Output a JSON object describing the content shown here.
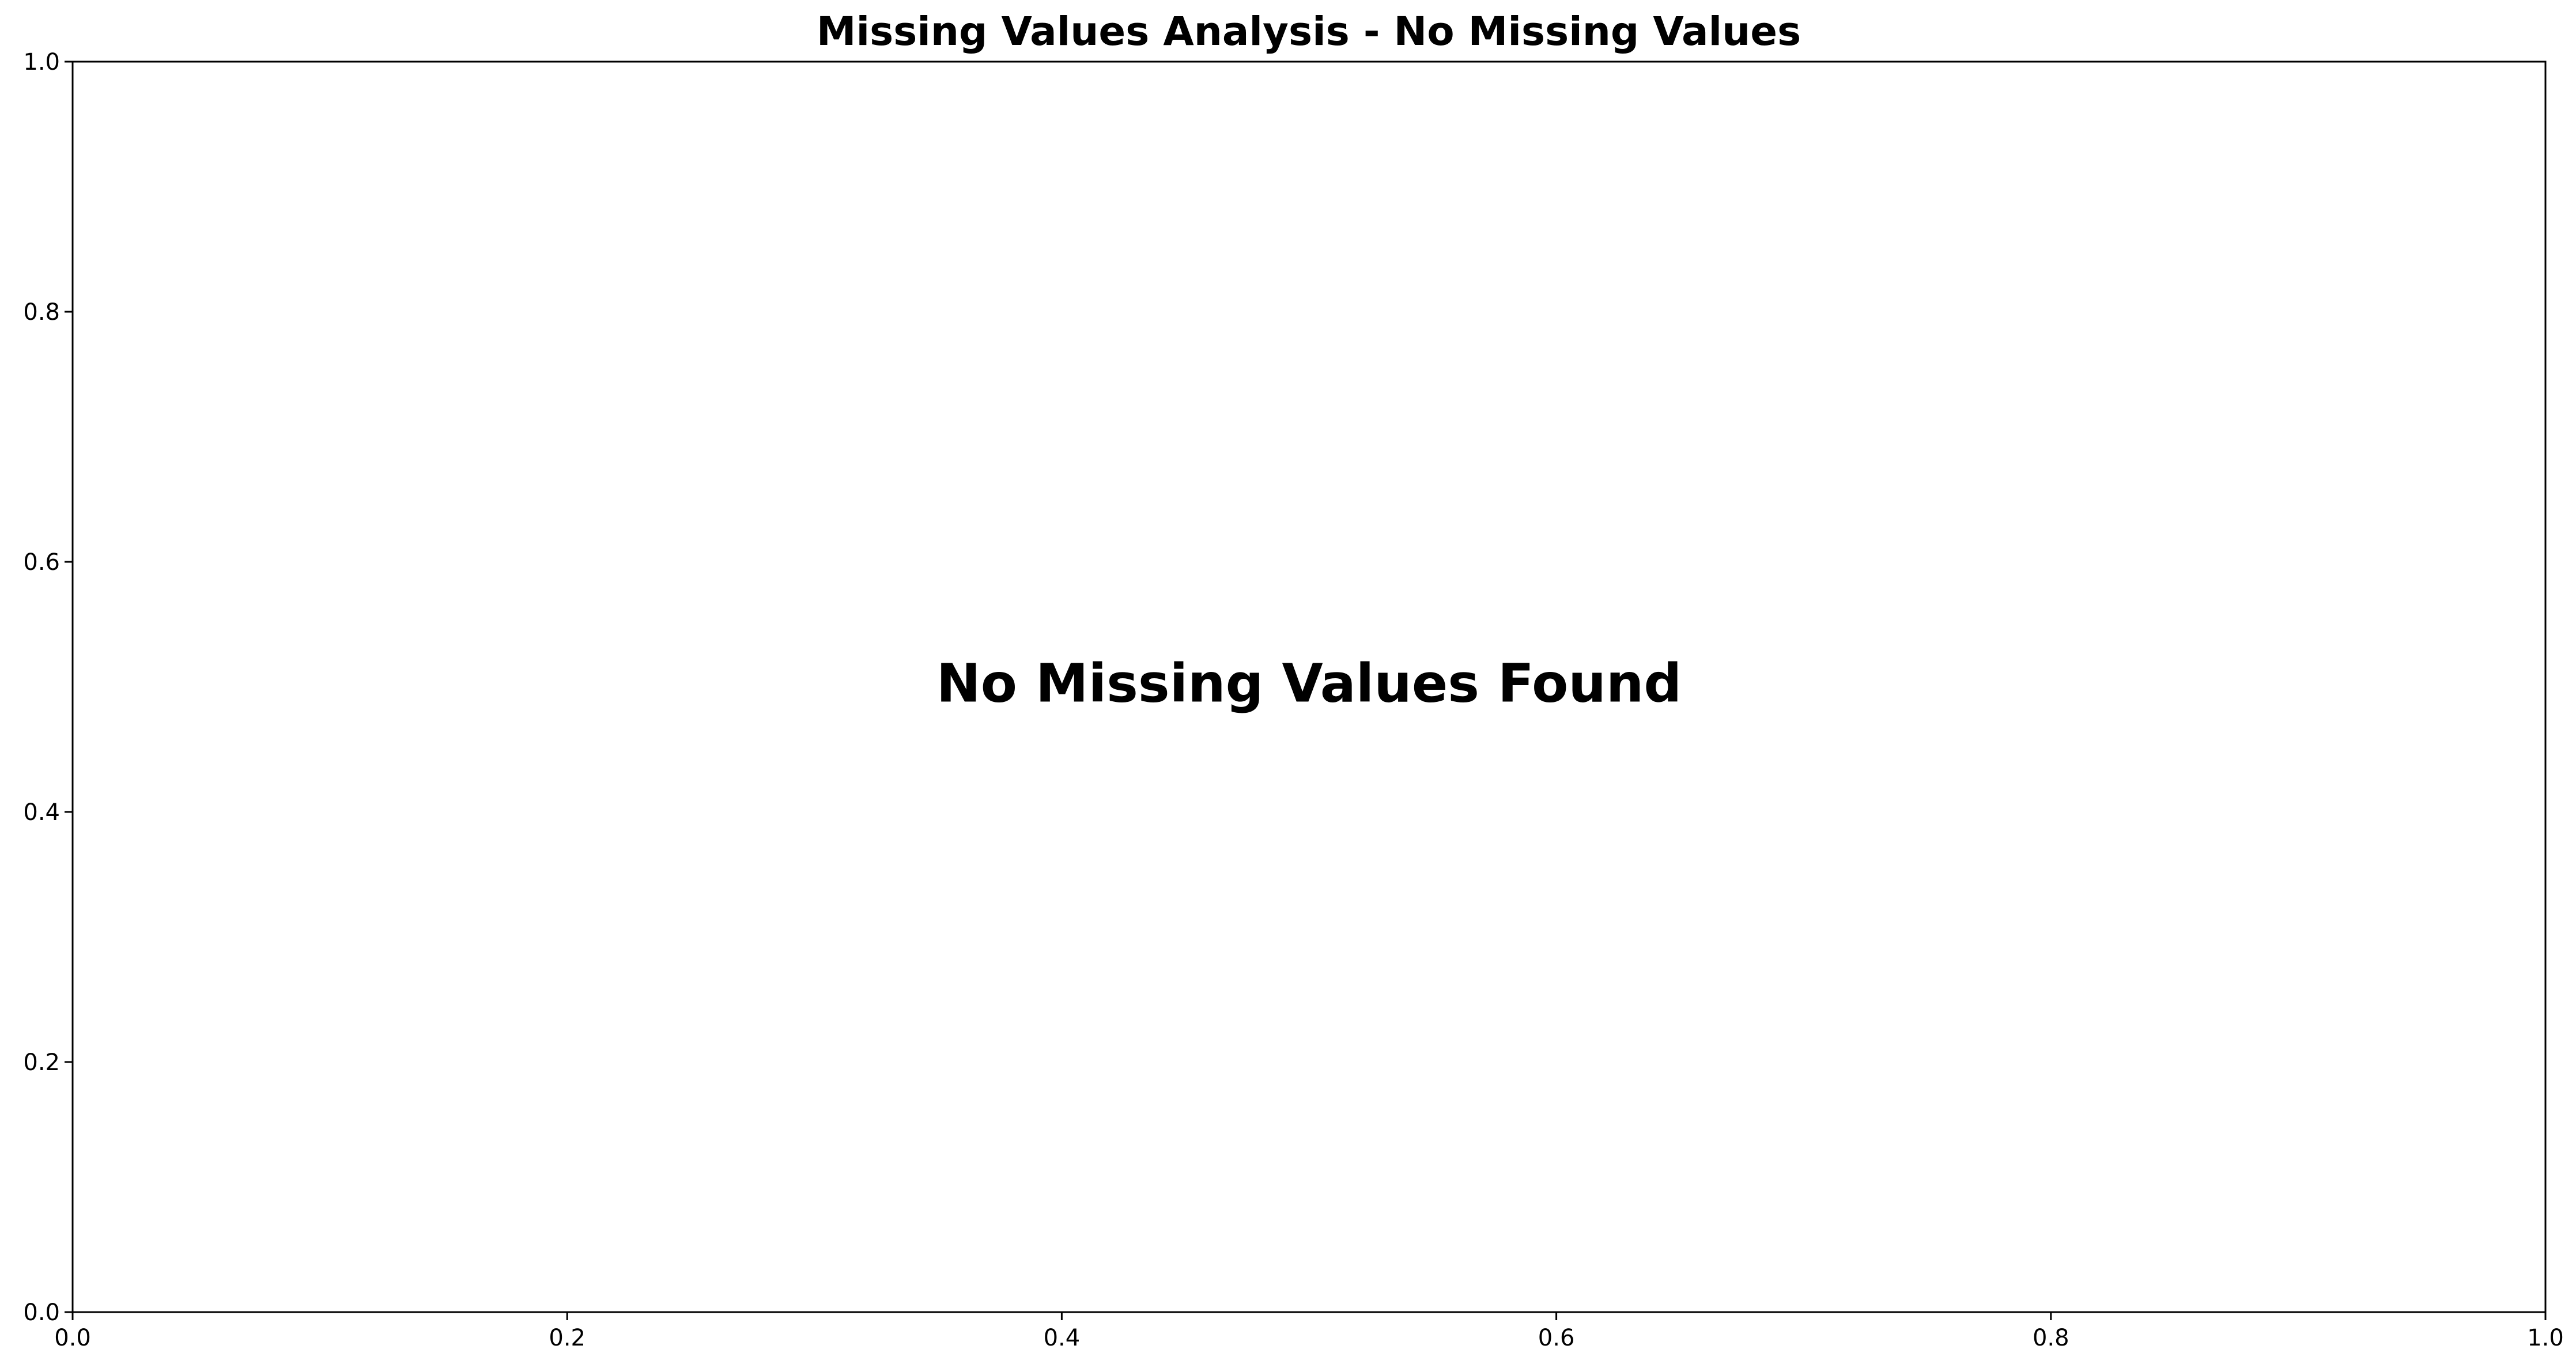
{
  "chart_data": {
    "type": "scatter",
    "title": "Missing Values Analysis - No Missing Values",
    "xlabel": "",
    "ylabel": "",
    "xlim": [
      0.0,
      1.0
    ],
    "ylim": [
      0.0,
      1.0
    ],
    "x_ticks": [
      0.0,
      0.2,
      0.4,
      0.6,
      0.8,
      1.0
    ],
    "y_ticks": [
      0.0,
      0.2,
      0.4,
      0.6,
      0.8,
      1.0
    ],
    "x_tick_labels": [
      "0.0",
      "0.2",
      "0.4",
      "0.6",
      "0.8",
      "1.0"
    ],
    "y_tick_labels": [
      "0.0",
      "0.2",
      "0.4",
      "0.6",
      "0.8",
      "1.0"
    ],
    "series": [],
    "grid": false,
    "annotations": [
      {
        "text": "No Missing Values Found",
        "x": 0.5,
        "y": 0.5
      }
    ],
    "colors": {
      "axis": "#000000",
      "text": "#000000",
      "background": "#ffffff"
    }
  }
}
